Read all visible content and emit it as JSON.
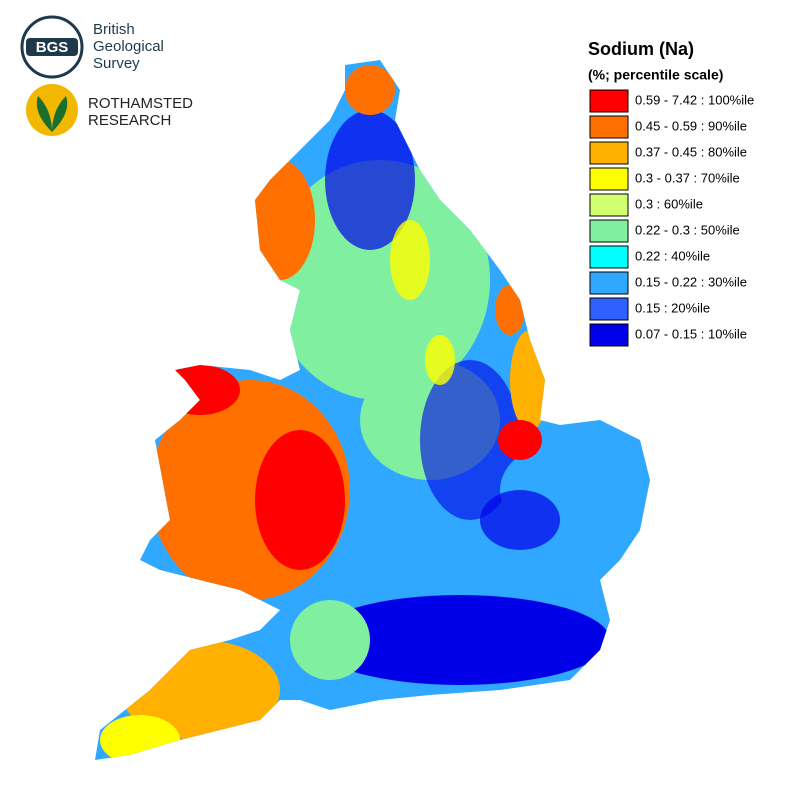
{
  "logos": {
    "bgs": {
      "mark": "BGS",
      "lines": [
        "British",
        "Geological",
        "Survey"
      ]
    },
    "rothamsted": {
      "lines": [
        "ROTHAMSTED",
        "RESEARCH"
      ]
    }
  },
  "legend": {
    "title": "Sodium (Na)",
    "subtitle": "(%; percentile scale)",
    "items": [
      {
        "label": "0.59 - 7.42 : 100%ile",
        "color": "#ff0000"
      },
      {
        "label": "0.45 - 0.59 : 90%ile",
        "color": "#ff7000"
      },
      {
        "label": "0.37 - 0.45 : 80%ile",
        "color": "#ffb000"
      },
      {
        "label": "0.3 - 0.37 : 70%ile",
        "color": "#ffff00"
      },
      {
        "label": "0.3 : 60%ile",
        "color": "#d0ff70"
      },
      {
        "label": "0.22 - 0.3 : 50%ile",
        "color": "#80f0a0"
      },
      {
        "label": "0.22 : 40%ile",
        "color": "#00ffff"
      },
      {
        "label": "0.15 - 0.22 : 30%ile",
        "color": "#30a8ff"
      },
      {
        "label": "0.15 : 20%ile",
        "color": "#3060ff"
      },
      {
        "label": "0.07 - 0.15 : 10%ile",
        "color": "#0000e8"
      }
    ]
  }
}
